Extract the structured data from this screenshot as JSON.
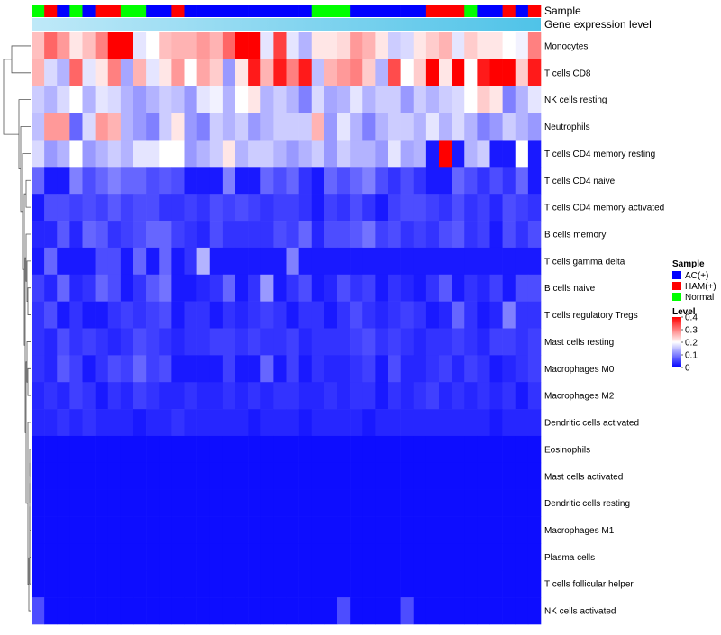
{
  "chart_data": {
    "type": "heatmap",
    "annotation_labels": [
      "Sample",
      "Gene expression level"
    ],
    "row_labels": [
      "Monocytes",
      "T cells CD8",
      "NK cells resting",
      "Neutrophils",
      "T cells CD4 memory resting",
      "T cells CD4 naive",
      "T cells CD4 memory activated",
      "B cells memory",
      "T cells gamma delta",
      "B cells naive",
      "T cells regulatory  Tregs",
      "Mast cells resting",
      "Macrophages M0",
      "Macrophages M2",
      "Dendritic cells activated",
      "Eosinophils",
      "Mast cells activated",
      "Dendritic cells resting",
      "Macrophages M1",
      "Plasma cells",
      "T cells follicular helper",
      "NK cells activated"
    ],
    "sample_groups": [
      "Normal",
      "HAM(+)",
      "AC(+)",
      "Normal",
      "AC(+)",
      "HAM(+)",
      "HAM(+)",
      "Normal",
      "Normal",
      "AC(+)",
      "AC(+)",
      "HAM(+)",
      "AC(+)",
      "AC(+)",
      "AC(+)",
      "AC(+)",
      "AC(+)",
      "AC(+)",
      "AC(+)",
      "AC(+)",
      "AC(+)",
      "AC(+)",
      "Normal",
      "Normal",
      "Normal",
      "AC(+)",
      "AC(+)",
      "AC(+)",
      "AC(+)",
      "AC(+)",
      "AC(+)",
      "HAM(+)",
      "HAM(+)",
      "HAM(+)",
      "Normal",
      "AC(+)",
      "AC(+)",
      "HAM(+)",
      "AC(+)",
      "HAM(+)"
    ],
    "values": [
      [
        0.25,
        0.32,
        0.28,
        0.22,
        0.25,
        0.3,
        0.4,
        0.4,
        0.18,
        0.2,
        0.25,
        0.26,
        0.26,
        0.28,
        0.26,
        0.32,
        0.4,
        0.4,
        0.18,
        0.35,
        0.18,
        0.14,
        0.22,
        0.22,
        0.23,
        0.28,
        0.26,
        0.22,
        0.16,
        0.17,
        0.22,
        0.24,
        0.26,
        0.18,
        0.24,
        0.22,
        0.22,
        0.2,
        0.19,
        0.3
      ],
      [
        0.26,
        0.17,
        0.14,
        0.32,
        0.18,
        0.22,
        0.3,
        0.13,
        0.26,
        0.18,
        0.22,
        0.28,
        0.2,
        0.27,
        0.24,
        0.12,
        0.22,
        0.38,
        0.26,
        0.38,
        0.3,
        0.38,
        0.15,
        0.26,
        0.28,
        0.3,
        0.24,
        0.14,
        0.34,
        0.2,
        0.24,
        0.4,
        0.22,
        0.4,
        0.2,
        0.38,
        0.4,
        0.4,
        0.24,
        0.38
      ],
      [
        0.16,
        0.14,
        0.17,
        0.2,
        0.14,
        0.18,
        0.17,
        0.14,
        0.12,
        0.14,
        0.16,
        0.15,
        0.12,
        0.18,
        0.19,
        0.14,
        0.2,
        0.22,
        0.14,
        0.16,
        0.14,
        0.1,
        0.17,
        0.13,
        0.14,
        0.18,
        0.14,
        0.16,
        0.16,
        0.12,
        0.16,
        0.14,
        0.16,
        0.17,
        0.2,
        0.24,
        0.22,
        0.1,
        0.14,
        0.18
      ],
      [
        0.15,
        0.28,
        0.28,
        0.08,
        0.17,
        0.28,
        0.26,
        0.14,
        0.12,
        0.1,
        0.16,
        0.22,
        0.12,
        0.1,
        0.16,
        0.14,
        0.16,
        0.12,
        0.14,
        0.16,
        0.16,
        0.16,
        0.26,
        0.12,
        0.18,
        0.14,
        0.1,
        0.14,
        0.16,
        0.16,
        0.14,
        0.18,
        0.14,
        0.17,
        0.14,
        0.1,
        0.12,
        0.16,
        0.14,
        0.12
      ],
      [
        0.17,
        0.12,
        0.14,
        0.2,
        0.12,
        0.14,
        0.16,
        0.14,
        0.18,
        0.18,
        0.2,
        0.2,
        0.12,
        0.14,
        0.16,
        0.22,
        0.14,
        0.16,
        0.16,
        0.14,
        0.12,
        0.14,
        0.16,
        0.12,
        0.16,
        0.14,
        0.14,
        0.12,
        0.18,
        0.13,
        0.14,
        0.02,
        0.4,
        0.02,
        0.14,
        0.16,
        0.02,
        0.02,
        0.2,
        0.02
      ],
      [
        0.08,
        0.02,
        0.02,
        0.1,
        0.06,
        0.08,
        0.1,
        0.08,
        0.08,
        0.06,
        0.07,
        0.06,
        0.02,
        0.02,
        0.02,
        0.1,
        0.02,
        0.02,
        0.08,
        0.06,
        0.08,
        0.04,
        0.02,
        0.08,
        0.06,
        0.08,
        0.1,
        0.06,
        0.04,
        0.06,
        0.04,
        0.02,
        0.02,
        0.08,
        0.06,
        0.04,
        0.06,
        0.04,
        0.08,
        0.02
      ],
      [
        0.02,
        0.06,
        0.06,
        0.05,
        0.06,
        0.05,
        0.07,
        0.05,
        0.06,
        0.06,
        0.04,
        0.04,
        0.05,
        0.04,
        0.06,
        0.05,
        0.06,
        0.05,
        0.04,
        0.05,
        0.05,
        0.04,
        0.02,
        0.05,
        0.04,
        0.06,
        0.04,
        0.02,
        0.05,
        0.06,
        0.06,
        0.05,
        0.04,
        0.06,
        0.04,
        0.05,
        0.03,
        0.06,
        0.05,
        0.04
      ],
      [
        0.03,
        0.03,
        0.07,
        0.03,
        0.08,
        0.07,
        0.04,
        0.05,
        0.06,
        0.08,
        0.08,
        0.05,
        0.04,
        0.03,
        0.06,
        0.04,
        0.04,
        0.04,
        0.04,
        0.06,
        0.05,
        0.08,
        0.03,
        0.06,
        0.06,
        0.07,
        0.09,
        0.05,
        0.06,
        0.04,
        0.05,
        0.04,
        0.06,
        0.07,
        0.04,
        0.05,
        0.02,
        0.06,
        0.04,
        0.06
      ],
      [
        0.02,
        0.08,
        0.02,
        0.02,
        0.02,
        0.06,
        0.06,
        0.02,
        0.08,
        0.02,
        0.08,
        0.02,
        0.04,
        0.14,
        0.02,
        0.02,
        0.02,
        0.02,
        0.02,
        0.02,
        0.1,
        0.02,
        0.02,
        0.02,
        0.02,
        0.02,
        0.02,
        0.02,
        0.02,
        0.02,
        0.02,
        0.02,
        0.02,
        0.02,
        0.02,
        0.02,
        0.02,
        0.02,
        0.02,
        0.02
      ],
      [
        0.05,
        0.03,
        0.08,
        0.03,
        0.04,
        0.08,
        0.06,
        0.02,
        0.04,
        0.07,
        0.09,
        0.02,
        0.02,
        0.03,
        0.04,
        0.08,
        0.02,
        0.04,
        0.12,
        0.02,
        0.04,
        0.06,
        0.02,
        0.03,
        0.06,
        0.04,
        0.05,
        0.02,
        0.04,
        0.03,
        0.02,
        0.04,
        0.07,
        0.02,
        0.04,
        0.03,
        0.05,
        0.02,
        0.06,
        0.06
      ],
      [
        0.04,
        0.06,
        0.02,
        0.04,
        0.02,
        0.02,
        0.04,
        0.05,
        0.04,
        0.05,
        0.06,
        0.02,
        0.04,
        0.04,
        0.02,
        0.04,
        0.03,
        0.04,
        0.05,
        0.04,
        0.02,
        0.04,
        0.04,
        0.02,
        0.04,
        0.06,
        0.04,
        0.03,
        0.04,
        0.05,
        0.04,
        0.02,
        0.03,
        0.08,
        0.04,
        0.02,
        0.03,
        0.1,
        0.04,
        0.04
      ],
      [
        0.04,
        0.03,
        0.06,
        0.04,
        0.05,
        0.04,
        0.03,
        0.04,
        0.06,
        0.05,
        0.04,
        0.03,
        0.04,
        0.04,
        0.05,
        0.05,
        0.04,
        0.05,
        0.04,
        0.04,
        0.05,
        0.03,
        0.04,
        0.04,
        0.04,
        0.05,
        0.06,
        0.04,
        0.05,
        0.04,
        0.03,
        0.04,
        0.04,
        0.05,
        0.04,
        0.03,
        0.05,
        0.05,
        0.04,
        0.05
      ],
      [
        0.04,
        0.03,
        0.07,
        0.05,
        0.02,
        0.04,
        0.06,
        0.05,
        0.08,
        0.05,
        0.06,
        0.02,
        0.02,
        0.02,
        0.02,
        0.05,
        0.02,
        0.02,
        0.08,
        0.02,
        0.05,
        0.02,
        0.04,
        0.03,
        0.03,
        0.04,
        0.05,
        0.02,
        0.06,
        0.03,
        0.03,
        0.04,
        0.05,
        0.03,
        0.05,
        0.04,
        0.02,
        0.03,
        0.04,
        0.05
      ],
      [
        0.03,
        0.04,
        0.03,
        0.05,
        0.04,
        0.02,
        0.04,
        0.03,
        0.05,
        0.04,
        0.03,
        0.03,
        0.04,
        0.03,
        0.03,
        0.04,
        0.03,
        0.04,
        0.03,
        0.04,
        0.04,
        0.03,
        0.03,
        0.04,
        0.03,
        0.04,
        0.04,
        0.02,
        0.04,
        0.03,
        0.04,
        0.05,
        0.03,
        0.04,
        0.03,
        0.04,
        0.03,
        0.04,
        0.02,
        0.04
      ],
      [
        0.03,
        0.03,
        0.04,
        0.03,
        0.04,
        0.03,
        0.03,
        0.03,
        0.02,
        0.03,
        0.03,
        0.04,
        0.03,
        0.03,
        0.03,
        0.03,
        0.03,
        0.02,
        0.03,
        0.03,
        0.03,
        0.02,
        0.03,
        0.03,
        0.03,
        0.03,
        0.02,
        0.03,
        0.03,
        0.03,
        0.03,
        0.03,
        0.03,
        0.03,
        0.03,
        0.03,
        0.02,
        0.03,
        0.03,
        0.03
      ],
      [
        0.01,
        0.01,
        0.01,
        0.01,
        0.01,
        0.01,
        0.01,
        0.01,
        0.01,
        0.01,
        0.01,
        0.01,
        0.01,
        0.01,
        0.01,
        0.01,
        0.01,
        0.01,
        0.01,
        0.01,
        0.01,
        0.01,
        0.01,
        0.01,
        0.01,
        0.01,
        0.01,
        0.01,
        0.01,
        0.01,
        0.01,
        0.01,
        0.01,
        0.01,
        0.01,
        0.01,
        0.01,
        0.01,
        0.01,
        0.01
      ],
      [
        0.01,
        0.01,
        0.01,
        0.01,
        0.01,
        0.01,
        0.01,
        0.01,
        0.01,
        0.01,
        0.01,
        0.01,
        0.01,
        0.01,
        0.01,
        0.01,
        0.01,
        0.01,
        0.01,
        0.01,
        0.01,
        0.01,
        0.01,
        0.01,
        0.01,
        0.01,
        0.01,
        0.01,
        0.01,
        0.01,
        0.01,
        0.01,
        0.01,
        0.01,
        0.01,
        0.01,
        0.01,
        0.01,
        0.01,
        0.01
      ],
      [
        0.01,
        0.01,
        0.01,
        0.01,
        0.01,
        0.01,
        0.01,
        0.01,
        0.01,
        0.01,
        0.01,
        0.01,
        0.01,
        0.01,
        0.01,
        0.01,
        0.01,
        0.01,
        0.01,
        0.01,
        0.01,
        0.01,
        0.01,
        0.01,
        0.01,
        0.01,
        0.01,
        0.01,
        0.01,
        0.01,
        0.01,
        0.01,
        0.01,
        0.01,
        0.01,
        0.01,
        0.01,
        0.01,
        0.01,
        0.01
      ],
      [
        0.01,
        0.01,
        0.01,
        0.01,
        0.01,
        0.01,
        0.01,
        0.01,
        0.01,
        0.01,
        0.01,
        0.01,
        0.01,
        0.01,
        0.01,
        0.01,
        0.01,
        0.01,
        0.01,
        0.01,
        0.01,
        0.01,
        0.01,
        0.01,
        0.01,
        0.01,
        0.01,
        0.01,
        0.01,
        0.01,
        0.01,
        0.01,
        0.01,
        0.01,
        0.01,
        0.01,
        0.01,
        0.01,
        0.01,
        0.01
      ],
      [
        0.01,
        0.01,
        0.01,
        0.01,
        0.01,
        0.01,
        0.01,
        0.01,
        0.01,
        0.01,
        0.01,
        0.01,
        0.01,
        0.01,
        0.01,
        0.01,
        0.01,
        0.01,
        0.01,
        0.01,
        0.01,
        0.01,
        0.01,
        0.01,
        0.01,
        0.01,
        0.01,
        0.01,
        0.01,
        0.01,
        0.01,
        0.01,
        0.01,
        0.01,
        0.01,
        0.01,
        0.01,
        0.01,
        0.01,
        0.01
      ],
      [
        0.01,
        0.01,
        0.01,
        0.01,
        0.01,
        0.01,
        0.01,
        0.01,
        0.01,
        0.01,
        0.01,
        0.01,
        0.01,
        0.01,
        0.01,
        0.01,
        0.01,
        0.01,
        0.01,
        0.01,
        0.01,
        0.01,
        0.01,
        0.01,
        0.01,
        0.01,
        0.01,
        0.01,
        0.01,
        0.01,
        0.01,
        0.01,
        0.01,
        0.01,
        0.01,
        0.01,
        0.01,
        0.01,
        0.01,
        0.01
      ],
      [
        0.06,
        0.01,
        0.01,
        0.01,
        0.01,
        0.01,
        0.01,
        0.01,
        0.01,
        0.01,
        0.01,
        0.01,
        0.01,
        0.01,
        0.01,
        0.01,
        0.01,
        0.01,
        0.01,
        0.01,
        0.01,
        0.01,
        0.01,
        0.01,
        0.06,
        0.01,
        0.01,
        0.01,
        0.01,
        0.06,
        0.01,
        0.01,
        0.01,
        0.01,
        0.01,
        0.01,
        0.01,
        0.01,
        0.01,
        0.01
      ]
    ],
    "value_range": [
      0,
      0.4
    ],
    "legend": {
      "sample_title": "Sample",
      "sample_items": [
        {
          "label": "AC(+)",
          "color": "#0000ff"
        },
        {
          "label": "HAM(+)",
          "color": "#ff0000"
        },
        {
          "label": "Normal",
          "color": "#00ff00"
        }
      ],
      "level_title": "Level",
      "level_ticks": [
        "0.4",
        "0.3",
        "0.2",
        "0.1",
        "0"
      ],
      "gradient_colors": [
        "#ff0000",
        "#ffffff",
        "#0000ff"
      ]
    },
    "expression_bar_colors": [
      "#bfe9f8",
      "#4fc3e8"
    ]
  }
}
